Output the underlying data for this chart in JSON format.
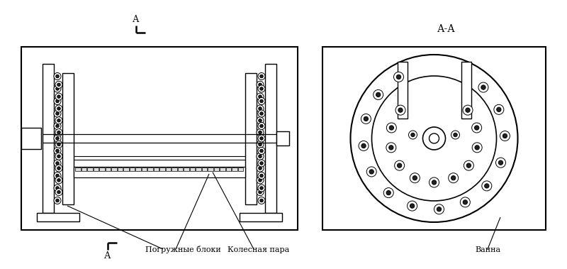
{
  "bg_color": "#ffffff",
  "line_color": "#000000",
  "label_pogr": "Погружные блоки",
  "label_koles": "Колесная пара",
  "label_vanna": "Ванна",
  "label_section": "А-А",
  "label_A": "А",
  "font_size_labels": 8,
  "font_size_section": 9
}
